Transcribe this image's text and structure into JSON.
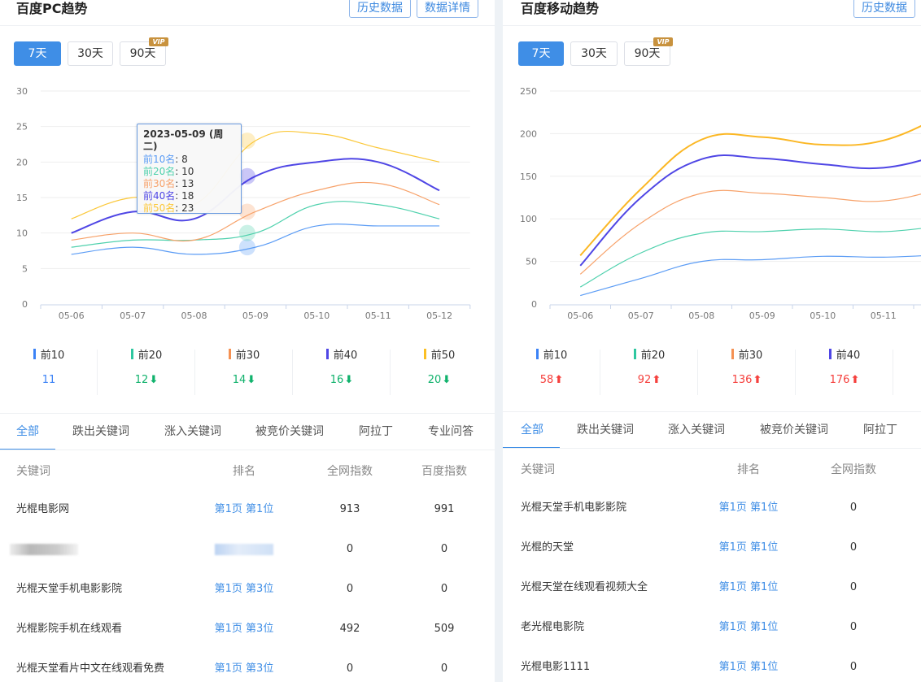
{
  "left": {
    "title": "百度PC趋势",
    "header_buttons": [
      "历史数据",
      "数据详情"
    ],
    "ranges": [
      "7天",
      "30天",
      "90天"
    ],
    "active_range": "7天",
    "vip_label": "VIP",
    "stats": [
      {
        "label": "前10",
        "value": "11",
        "trend": "none",
        "color": "#3b82f6"
      },
      {
        "label": "前20",
        "value": "12",
        "trend": "down",
        "color": "#2ec7a0"
      },
      {
        "label": "前30",
        "value": "14",
        "trend": "down",
        "color": "#f59153"
      },
      {
        "label": "前40",
        "value": "16",
        "trend": "down",
        "color": "#4f46e5"
      },
      {
        "label": "前50",
        "value": "20",
        "trend": "down",
        "color": "#fbbf24"
      }
    ],
    "tooltip": {
      "title": "2023-05-09 (周二)",
      "items": [
        {
          "label": "前10名",
          "value": "8"
        },
        {
          "label": "前20名",
          "value": "10"
        },
        {
          "label": "前30名",
          "value": "13"
        },
        {
          "label": "前40名",
          "value": "18"
        },
        {
          "label": "前50名",
          "value": "23"
        }
      ]
    },
    "tabs": [
      "全部",
      "跌出关键词",
      "涨入关键词",
      "被竞价关键词",
      "阿拉丁",
      "专业问答"
    ],
    "active_tab": "全部",
    "table_headers": [
      "关键词",
      "排名",
      "全网指数",
      "百度指数"
    ],
    "rows": [
      {
        "keyword": "光棍电影网",
        "rank": "第1页 第1位",
        "total_index": "913",
        "baidu_index": "991",
        "blurred": false
      },
      {
        "keyword": "",
        "rank": "",
        "total_index": "0",
        "baidu_index": "0",
        "blurred": true
      },
      {
        "keyword": "光棍天堂手机电影影院",
        "rank": "第1页 第3位",
        "total_index": "0",
        "baidu_index": "0",
        "blurred": false
      },
      {
        "keyword": "光棍影院手机在线观看",
        "rank": "第1页 第3位",
        "total_index": "492",
        "baidu_index": "509",
        "blurred": false
      },
      {
        "keyword": "光棍天堂看片中文在线观看免费",
        "rank": "第1页 第3位",
        "total_index": "0",
        "baidu_index": "0",
        "blurred": false
      }
    ]
  },
  "right": {
    "title": "百度移动趋势",
    "header_buttons": [
      "历史数据"
    ],
    "ranges": [
      "7天",
      "30天",
      "90天"
    ],
    "active_range": "7天",
    "vip_label": "VIP",
    "stats": [
      {
        "label": "前10",
        "value": "58",
        "trend": "up",
        "color": "#3b82f6"
      },
      {
        "label": "前20",
        "value": "92",
        "trend": "up",
        "color": "#2ec7a0"
      },
      {
        "label": "前30",
        "value": "136",
        "trend": "up",
        "color": "#f59153"
      },
      {
        "label": "前40",
        "value": "176",
        "trend": "up",
        "color": "#4f46e5"
      }
    ],
    "tabs": [
      "全部",
      "跌出关键词",
      "涨入关键词",
      "被竞价关键词",
      "阿拉丁"
    ],
    "active_tab": "全部",
    "table_headers": [
      "关键词",
      "排名",
      "全网指数"
    ],
    "rows": [
      {
        "keyword": "光棍天堂手机电影影院",
        "rank": "第1页 第1位",
        "total_index": "0"
      },
      {
        "keyword": "光棍的天堂",
        "rank": "第1页 第1位",
        "total_index": "0"
      },
      {
        "keyword": "光棍天堂在线观看视频大全",
        "rank": "第1页 第1位",
        "total_index": "0"
      },
      {
        "keyword": "老光棍电影院",
        "rank": "第1页 第1位",
        "total_index": "0"
      },
      {
        "keyword": "光棍电影1111",
        "rank": "第1页 第1位",
        "total_index": "0"
      }
    ]
  },
  "colors": {
    "accent": "#3f8ee6",
    "up": "#f5403d",
    "down": "#10b26c"
  },
  "chart_data": [
    {
      "type": "line",
      "categories": [
        "05-06",
        "05-07",
        "05-08",
        "05-09",
        "05-10",
        "05-11",
        "05-12"
      ],
      "yticks": [
        0,
        5,
        10,
        15,
        20,
        25,
        30
      ],
      "ylim": [
        0,
        30
      ],
      "grid": true,
      "highlighted_category": "05-09",
      "series": [
        {
          "name": "前10",
          "color": "#5b9cf5",
          "values": [
            7,
            8,
            7,
            8,
            11,
            11,
            11
          ]
        },
        {
          "name": "前20",
          "color": "#4fd1ad",
          "values": [
            8,
            9,
            9,
            10,
            14,
            14,
            12
          ]
        },
        {
          "name": "前30",
          "color": "#f7a26a",
          "values": [
            9,
            10,
            9,
            13,
            16,
            17,
            14
          ]
        },
        {
          "name": "前40",
          "color": "#4f46e5",
          "values": [
            10,
            13,
            12,
            18,
            20,
            20,
            16
          ]
        },
        {
          "name": "前50",
          "color": "#fbc83a",
          "values": [
            12,
            15,
            14,
            23,
            24,
            22,
            20
          ]
        }
      ]
    },
    {
      "type": "line",
      "categories": [
        "05-06",
        "05-07",
        "05-08",
        "05-09",
        "05-10",
        "05-11",
        "05-12"
      ],
      "yticks": [
        0,
        50,
        100,
        150,
        200,
        250
      ],
      "ylim": [
        0,
        250
      ],
      "grid": true,
      "series": [
        {
          "name": "前10",
          "color": "#5b9cf5",
          "values": [
            10,
            30,
            50,
            52,
            56,
            55,
            58
          ]
        },
        {
          "name": "前20",
          "color": "#4fd1ad",
          "values": [
            20,
            60,
            83,
            85,
            88,
            85,
            92
          ]
        },
        {
          "name": "前30",
          "color": "#f7a26a",
          "values": [
            35,
            95,
            130,
            130,
            125,
            121,
            136
          ]
        },
        {
          "name": "前40",
          "color": "#4f46e5",
          "values": [
            45,
            125,
            170,
            171,
            164,
            160,
            176
          ]
        },
        {
          "name": "前50",
          "color": "#fbb724",
          "values": [
            57,
            135,
            193,
            196,
            187,
            192,
            222
          ]
        }
      ]
    }
  ]
}
